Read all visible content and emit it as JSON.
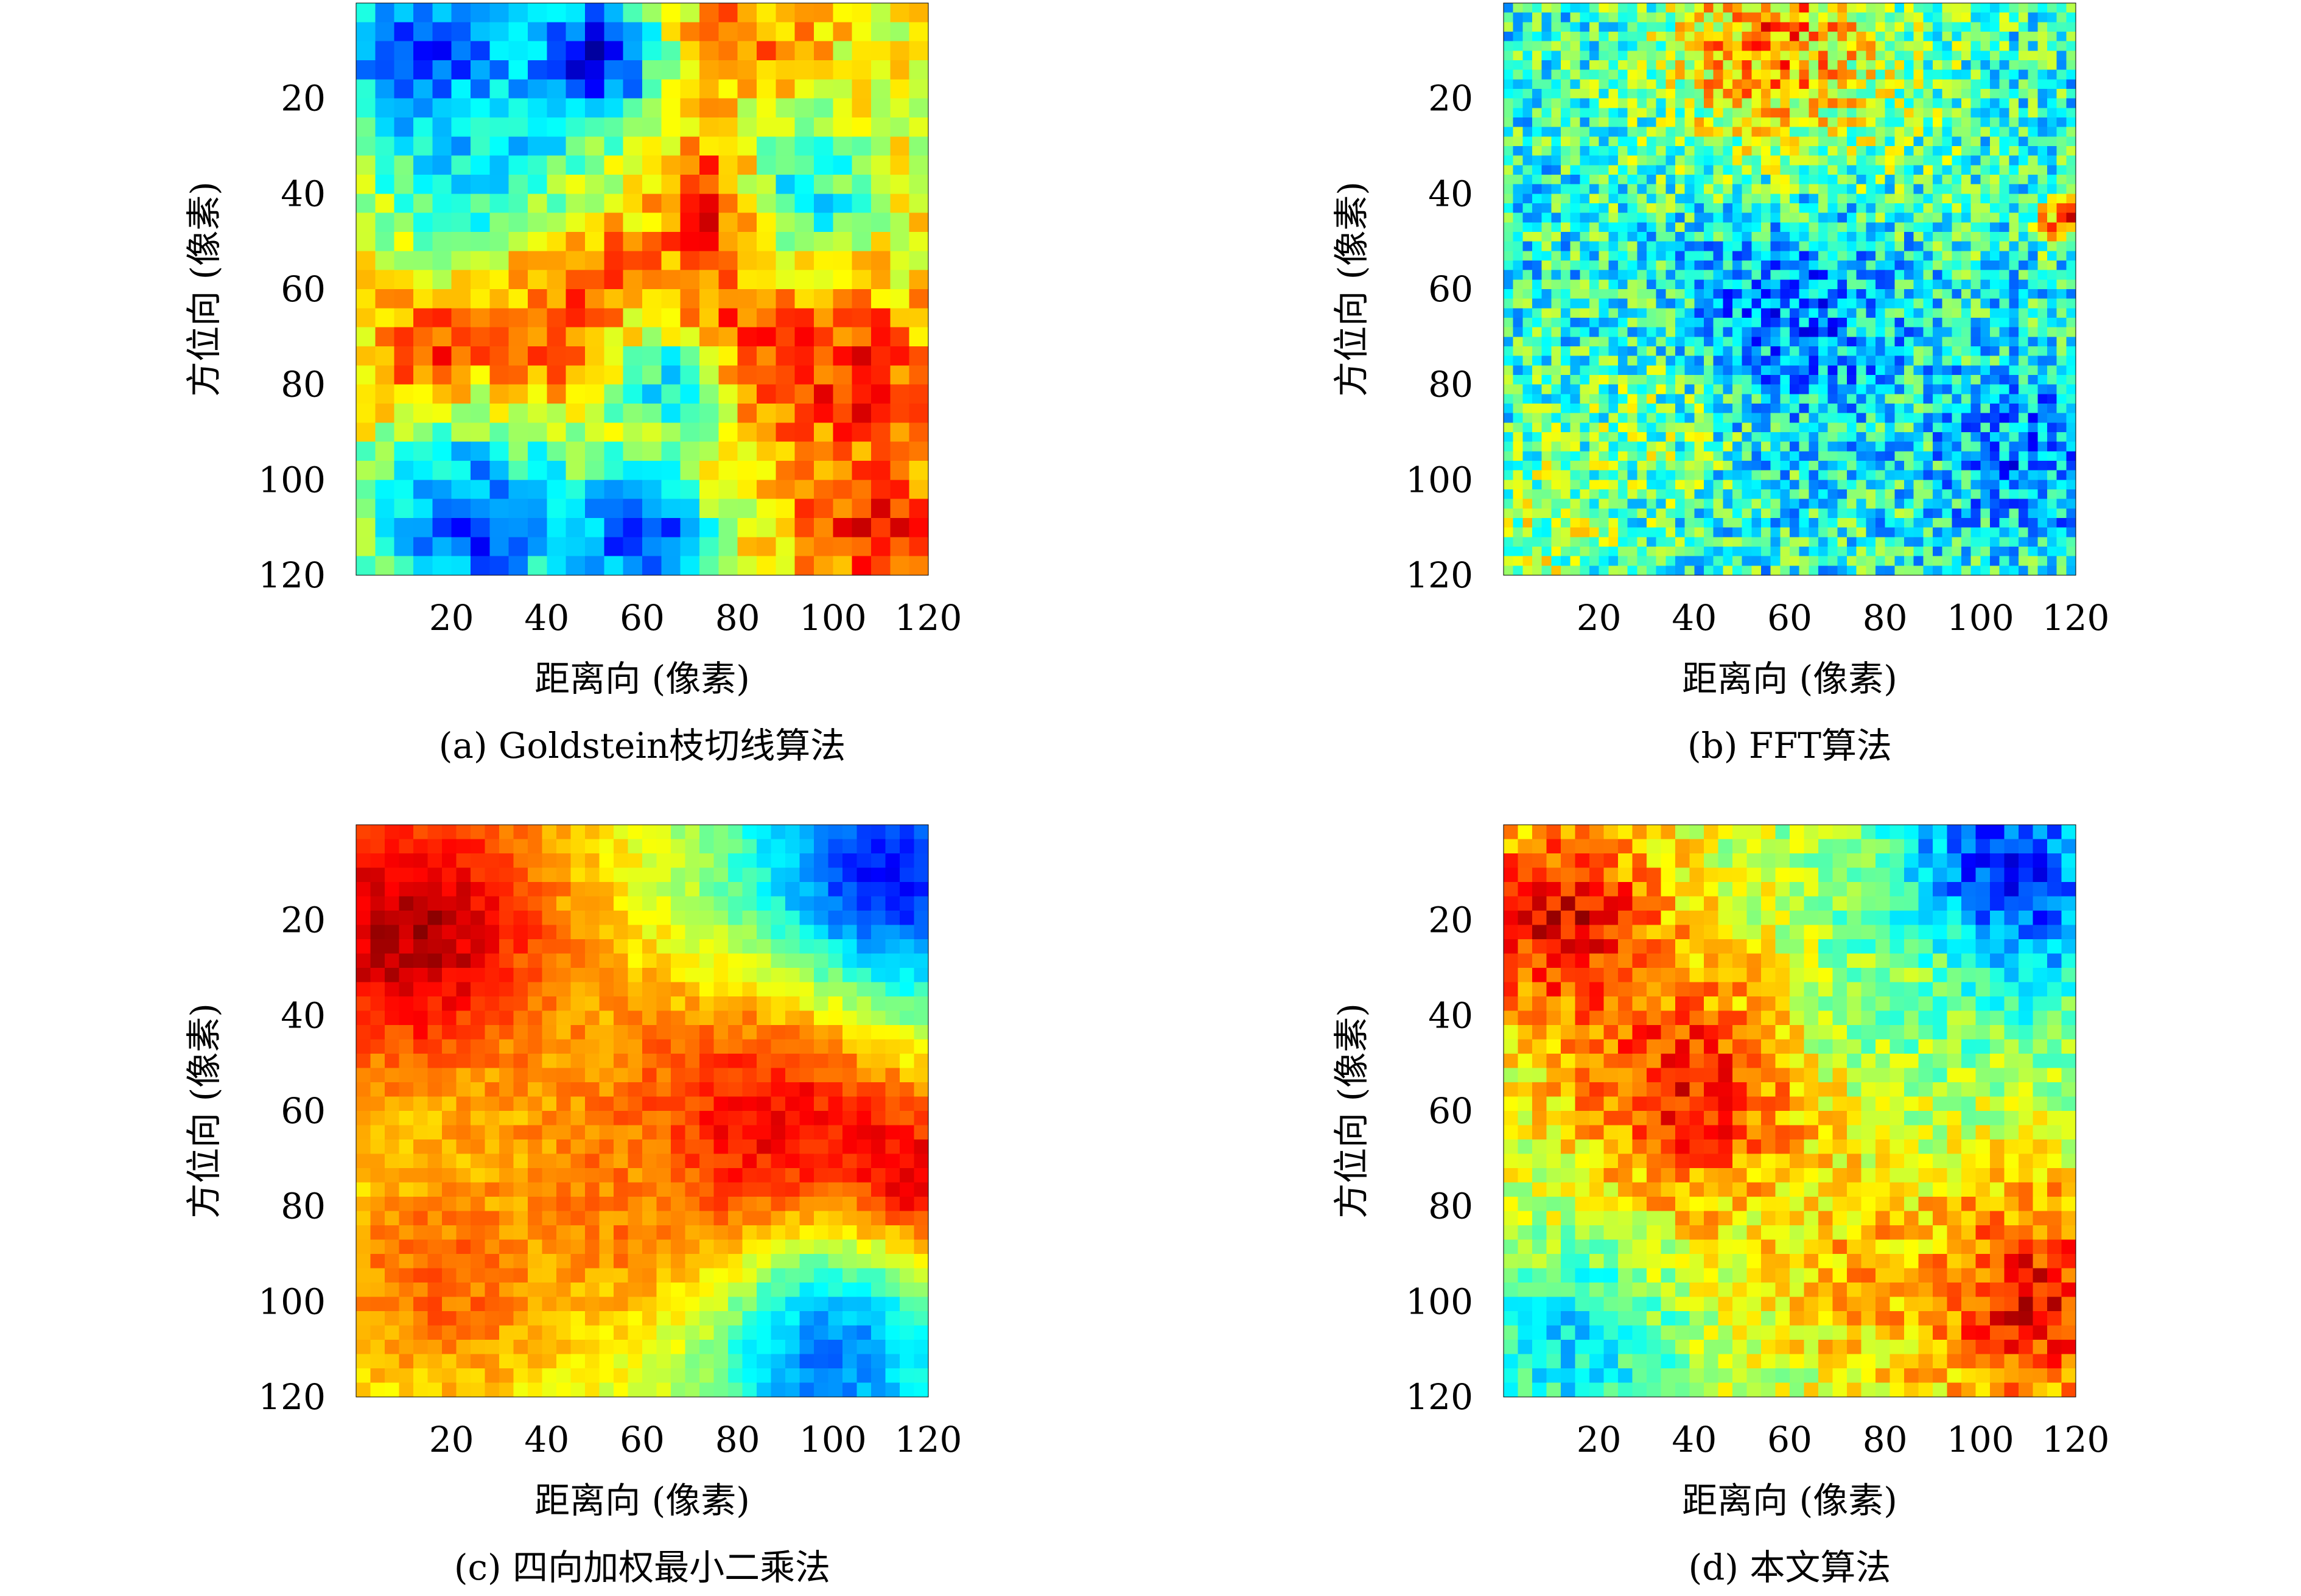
{
  "figure": {
    "panels": [
      {
        "caption": "(a) Goldstein枝切线算法",
        "xlabel": "距离向 (像素)",
        "ylabel": "方位向 (像素)"
      },
      {
        "caption": "(b) FFT算法",
        "xlabel": "距离向 (像素)",
        "ylabel": "方位向 (像素)"
      },
      {
        "caption": "(c) 四向加权最小二乘法",
        "xlabel": "距离向 (像素)",
        "ylabel": "方位向 (像素)"
      },
      {
        "caption": "(d) 本文算法",
        "xlabel": "距离向 (像素)",
        "ylabel": "方位向 (像素)"
      }
    ]
  },
  "chart_data": [
    {
      "type": "heatmap",
      "title": "(a) Goldstein枝切线算法",
      "xlabel": "距离向 (像素)",
      "ylabel": "方位向 (像素)",
      "xticks": [
        20,
        40,
        60,
        80,
        100,
        120
      ],
      "yticks": [
        20,
        40,
        60,
        80,
        100,
        120
      ],
      "xlim": [
        0,
        120
      ],
      "ylim": [
        120,
        0
      ],
      "colormap": "jet",
      "grid": false,
      "background_value": 0.62,
      "blobs": [
        {
          "x": 15,
          "y": 12,
          "r": 16,
          "v": 0.18
        },
        {
          "x": 50,
          "y": 12,
          "r": 10,
          "v": 0.08
        },
        {
          "x": 30,
          "y": 35,
          "r": 14,
          "v": 0.33
        },
        {
          "x": 82,
          "y": 6,
          "r": 10,
          "v": 0.75
        },
        {
          "x": 75,
          "y": 42,
          "r": 8,
          "v": 0.95
        },
        {
          "x": 50,
          "y": 60,
          "r": 12,
          "v": 0.78
        },
        {
          "x": 15,
          "y": 75,
          "r": 9,
          "v": 0.88
        },
        {
          "x": 80,
          "y": 70,
          "r": 14,
          "v": 0.83
        },
        {
          "x": 105,
          "y": 78,
          "r": 12,
          "v": 0.85
        },
        {
          "x": 38,
          "y": 75,
          "r": 11,
          "v": 0.8
        },
        {
          "x": 25,
          "y": 110,
          "r": 16,
          "v": 0.2
        },
        {
          "x": 60,
          "y": 112,
          "r": 10,
          "v": 0.15
        },
        {
          "x": 108,
          "y": 110,
          "r": 12,
          "v": 0.85
        },
        {
          "x": 95,
          "y": 40,
          "r": 10,
          "v": 0.38
        },
        {
          "x": 65,
          "y": 80,
          "r": 9,
          "v": 0.38
        }
      ],
      "noise": 0.1,
      "cell": 4
    },
    {
      "type": "heatmap",
      "title": "(b) FFT算法",
      "xlabel": "距离向 (像素)",
      "ylabel": "方位向 (像素)",
      "xticks": [
        20,
        40,
        60,
        80,
        100,
        120
      ],
      "yticks": [
        20,
        40,
        60,
        80,
        100,
        120
      ],
      "xlim": [
        0,
        120
      ],
      "ylim": [
        120,
        0
      ],
      "colormap": "jet",
      "grid": false,
      "background_value": 0.4,
      "blobs": [
        {
          "x": 60,
          "y": 14,
          "r": 22,
          "v": 0.62
        },
        {
          "x": 55,
          "y": 8,
          "r": 10,
          "v": 0.75
        },
        {
          "x": 60,
          "y": 65,
          "r": 16,
          "v": 0.25
        },
        {
          "x": 110,
          "y": 95,
          "r": 12,
          "v": 0.25
        },
        {
          "x": 10,
          "y": 110,
          "r": 12,
          "v": 0.55
        },
        {
          "x": 30,
          "y": 90,
          "r": 12,
          "v": 0.5
        },
        {
          "x": 118,
          "y": 45,
          "r": 4,
          "v": 0.85
        }
      ],
      "noise": 0.18,
      "cell": 2
    },
    {
      "type": "heatmap",
      "title": "(c) 四向加权最小二乘法",
      "xlabel": "距离向 (像素)",
      "ylabel": "方位向 (像素)",
      "xticks": [
        20,
        40,
        60,
        80,
        100,
        120
      ],
      "yticks": [
        20,
        40,
        60,
        80,
        100,
        120
      ],
      "xlim": [
        0,
        120
      ],
      "ylim": [
        120,
        0
      ],
      "colormap": "jet",
      "grid": false,
      "background_value": 0.58,
      "blobs": [
        {
          "x": 12,
          "y": 22,
          "r": 24,
          "v": 0.95
        },
        {
          "x": 110,
          "y": 15,
          "r": 22,
          "v": 0.08
        },
        {
          "x": 85,
          "y": 70,
          "r": 28,
          "v": 0.92
        },
        {
          "x": 115,
          "y": 78,
          "r": 12,
          "v": 1.0
        },
        {
          "x": 18,
          "y": 95,
          "r": 20,
          "v": 0.78
        },
        {
          "x": 100,
          "y": 112,
          "r": 20,
          "v": 0.25
        },
        {
          "x": 55,
          "y": 75,
          "r": 14,
          "v": 0.75
        }
      ],
      "noise": 0.05,
      "cell": 3
    },
    {
      "type": "heatmap",
      "title": "(d) 本文算法",
      "xlabel": "距离向 (像素)",
      "ylabel": "方位向 (像素)",
      "xticks": [
        20,
        40,
        60,
        80,
        100,
        120
      ],
      "yticks": [
        20,
        40,
        60,
        80,
        100,
        120
      ],
      "xlim": [
        0,
        120
      ],
      "ylim": [
        120,
        0
      ],
      "colormap": "jet",
      "grid": false,
      "background_value": 0.55,
      "blobs": [
        {
          "x": 12,
          "y": 20,
          "r": 16,
          "v": 0.9
        },
        {
          "x": 40,
          "y": 55,
          "r": 20,
          "v": 0.85
        },
        {
          "x": 105,
          "y": 12,
          "r": 18,
          "v": 0.15
        },
        {
          "x": 80,
          "y": 35,
          "r": 14,
          "v": 0.5
        },
        {
          "x": 110,
          "y": 100,
          "r": 18,
          "v": 0.88
        },
        {
          "x": 15,
          "y": 110,
          "r": 14,
          "v": 0.35
        },
        {
          "x": 75,
          "y": 95,
          "r": 14,
          "v": 0.7
        }
      ],
      "noise": 0.1,
      "cell": 3
    }
  ]
}
